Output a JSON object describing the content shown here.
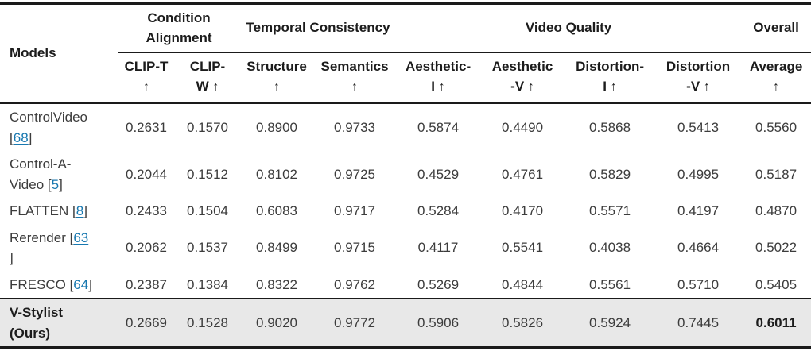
{
  "table": {
    "models_header": "Models",
    "citation_open": "[",
    "citation_close": "]",
    "arrow_up": "↑",
    "link_color": "#1878b0",
    "highlight_bg": "#e8e8e8",
    "groups": [
      {
        "label": "Condition Alignment",
        "span": 2
      },
      {
        "label": "Temporal Consistency",
        "span": 2
      },
      {
        "label": "Video Quality",
        "span": 4
      },
      {
        "label": "Overall",
        "span": 1
      }
    ],
    "columns": [
      {
        "line1": "CLIP-T",
        "line2": ""
      },
      {
        "line1": "CLIP-",
        "line2": "W"
      },
      {
        "line1": "Structure",
        "line2": ""
      },
      {
        "line1": "Semantics",
        "line2": ""
      },
      {
        "line1": "Aesthetic-",
        "line2": "I"
      },
      {
        "line1": "Aesthetic",
        "line2": "-V"
      },
      {
        "line1": "Distortion-",
        "line2": "I"
      },
      {
        "line1": "Distortion",
        "line2": "-V"
      },
      {
        "line1": "Average",
        "line2": ""
      }
    ],
    "rows": [
      {
        "name": "ControlVideo",
        "cite": "68",
        "cite_wrap": false,
        "ours": false,
        "values": [
          "0.2631",
          "0.1570",
          "0.8900",
          "0.9733",
          "0.5874",
          "0.4490",
          "0.5868",
          "0.5413",
          "0.5560"
        ]
      },
      {
        "name": "Control-A-Video",
        "cite": "5",
        "cite_wrap": false,
        "ours": false,
        "values": [
          "0.2044",
          "0.1512",
          "0.8102",
          "0.9725",
          "0.4529",
          "0.4761",
          "0.5829",
          "0.4995",
          "0.5187"
        ]
      },
      {
        "name": "FLATTEN",
        "cite": "8",
        "cite_wrap": false,
        "ours": false,
        "values": [
          "0.2433",
          "0.1504",
          "0.6083",
          "0.9717",
          "0.5284",
          "0.4170",
          "0.5571",
          "0.4197",
          "0.4870"
        ]
      },
      {
        "name": "Rerender",
        "cite": "63",
        "cite_wrap": true,
        "ours": false,
        "values": [
          "0.2062",
          "0.1537",
          "0.8499",
          "0.9715",
          "0.4117",
          "0.5541",
          "0.4038",
          "0.4664",
          "0.5022"
        ]
      },
      {
        "name": "FRESCO",
        "cite": "64",
        "cite_wrap": false,
        "ours": false,
        "values": [
          "0.2387",
          "0.1384",
          "0.8322",
          "0.9762",
          "0.5269",
          "0.4844",
          "0.5561",
          "0.5710",
          "0.5405"
        ]
      },
      {
        "name": "V-Stylist (Ours)",
        "cite": null,
        "cite_wrap": false,
        "ours": true,
        "bold_value_index": 8,
        "values": [
          "0.2669",
          "0.1528",
          "0.9020",
          "0.9772",
          "0.5906",
          "0.5826",
          "0.5924",
          "0.7445",
          "0.6011"
        ]
      }
    ]
  }
}
